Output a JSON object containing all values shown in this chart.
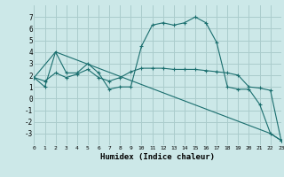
{
  "bg_color": "#cce8e8",
  "grid_color": "#aacccc",
  "line_color": "#1a6e6e",
  "xlabel": "Humidex (Indice chaleur)",
  "ylim": [
    -4,
    8
  ],
  "xlim": [
    0,
    23
  ],
  "yticks": [
    -3,
    -2,
    -1,
    0,
    1,
    2,
    3,
    4,
    5,
    6,
    7
  ],
  "xticks": [
    0,
    1,
    2,
    3,
    4,
    5,
    6,
    7,
    8,
    9,
    10,
    11,
    12,
    13,
    14,
    15,
    16,
    17,
    18,
    19,
    20,
    21,
    22,
    23
  ],
  "line1_x": [
    0,
    1,
    2,
    3,
    4,
    5,
    6,
    7,
    8,
    9,
    10,
    11,
    12,
    13,
    14,
    15,
    16,
    17,
    18,
    19,
    20,
    21,
    22,
    23
  ],
  "line1_y": [
    1.8,
    1.0,
    4.0,
    2.2,
    2.2,
    3.0,
    2.2,
    0.8,
    1.0,
    1.0,
    4.5,
    6.3,
    6.5,
    6.3,
    6.5,
    7.0,
    6.5,
    4.8,
    1.0,
    0.8,
    0.8,
    -0.5,
    -3.0,
    -3.6
  ],
  "line2_x": [
    0,
    2,
    22,
    23
  ],
  "line2_y": [
    1.8,
    4.0,
    -3.0,
    -3.6
  ],
  "line3_x": [
    0,
    1,
    2,
    3,
    4,
    5,
    6,
    7,
    8,
    9,
    10,
    11,
    12,
    13,
    14,
    15,
    16,
    17,
    18,
    19,
    20,
    21,
    22,
    23
  ],
  "line3_y": [
    1.8,
    1.5,
    2.2,
    1.8,
    2.1,
    2.5,
    1.8,
    1.5,
    1.8,
    2.3,
    2.6,
    2.6,
    2.6,
    2.5,
    2.5,
    2.5,
    2.4,
    2.3,
    2.2,
    2.0,
    1.0,
    0.9,
    0.7,
    -3.6
  ]
}
